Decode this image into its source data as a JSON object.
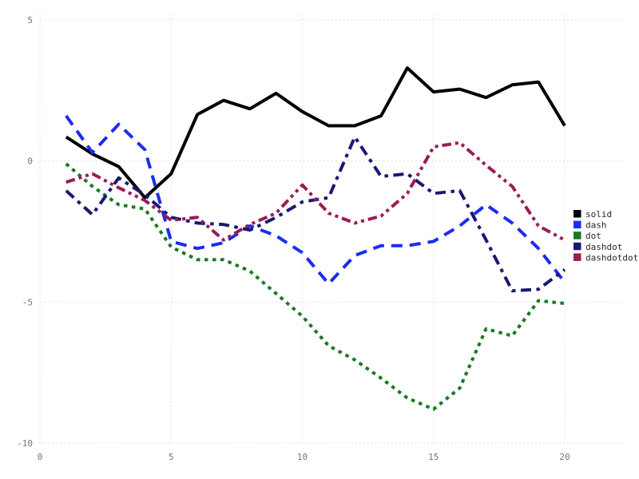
{
  "chart_data": {
    "type": "line",
    "title": "",
    "xlabel": "",
    "ylabel": "",
    "xlim": [
      0,
      20
    ],
    "ylim": [
      -10,
      5
    ],
    "xticks": [
      0,
      5,
      10,
      15,
      20
    ],
    "yticks": [
      5,
      0,
      -5,
      -10
    ],
    "grid": true,
    "grid_style": "dotted",
    "grid_color": "#d7d7e2",
    "tick_label_color": "#757575",
    "legend_position": "right-middle",
    "x": [
      1,
      2,
      3,
      4,
      5,
      6,
      7,
      8,
      9,
      10,
      11,
      12,
      13,
      14,
      15,
      16,
      17,
      18,
      19,
      20
    ],
    "series": [
      {
        "name": "solid",
        "color": "#000000",
        "line_style": "solid",
        "values": [
          0.85,
          0.25,
          -0.2,
          -1.3,
          -0.45,
          1.65,
          2.15,
          1.85,
          2.4,
          1.75,
          1.25,
          1.25,
          1.6,
          3.3,
          2.45,
          2.55,
          2.25,
          2.7,
          2.8,
          1.25
        ]
      },
      {
        "name": "dash",
        "color": "#1c2cf0",
        "line_style": "dash",
        "values": [
          1.6,
          0.3,
          1.3,
          0.4,
          -2.85,
          -3.1,
          -2.9,
          -2.3,
          -2.65,
          -3.25,
          -4.35,
          -3.35,
          -3.0,
          -3.0,
          -2.85,
          -2.3,
          -1.55,
          -2.2,
          -3.1,
          -4.3
        ]
      },
      {
        "name": "dot",
        "color": "#1a7a1f",
        "line_style": "dot",
        "values": [
          -0.1,
          -0.9,
          -1.55,
          -1.7,
          -3.05,
          -3.5,
          -3.5,
          -3.9,
          -4.7,
          -5.5,
          -6.55,
          -7.05,
          -7.7,
          -8.4,
          -8.8,
          -8.05,
          -5.95,
          -6.2,
          -4.95,
          -5.05
        ]
      },
      {
        "name": "dashdot",
        "color": "#191970",
        "line_style": "dashdot",
        "values": [
          -1.05,
          -1.9,
          -0.6,
          -1.2,
          -2.0,
          -2.2,
          -2.25,
          -2.45,
          -2.0,
          -1.45,
          -1.3,
          0.85,
          -0.55,
          -0.45,
          -1.15,
          -1.05,
          -2.8,
          -4.6,
          -4.55,
          -3.85
        ]
      },
      {
        "name": "dashdotdot",
        "color": "#9b1b55",
        "line_style": "dashdotdot",
        "values": [
          -0.75,
          -0.45,
          -0.95,
          -1.4,
          -2.1,
          -2.0,
          -2.8,
          -2.25,
          -1.85,
          -0.85,
          -1.85,
          -2.2,
          -1.95,
          -1.15,
          0.5,
          0.65,
          -0.15,
          -0.9,
          -2.3,
          -2.8
        ]
      }
    ],
    "legend_labels": [
      "solid",
      "dash",
      "dot",
      "dashdot",
      "dashdotdot"
    ]
  }
}
